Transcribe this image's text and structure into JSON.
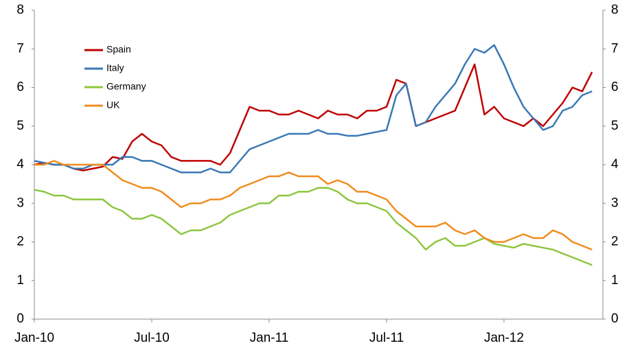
{
  "chart_data": {
    "type": "line",
    "categories": [
      "Jan-10",
      null,
      null,
      null,
      null,
      null,
      null,
      null,
      null,
      null,
      null,
      null,
      "Jul-10",
      null,
      null,
      null,
      null,
      null,
      null,
      null,
      null,
      null,
      null,
      null,
      "Jan-11",
      null,
      null,
      null,
      null,
      null,
      null,
      null,
      null,
      null,
      null,
      null,
      "Jul-11",
      null,
      null,
      null,
      null,
      null,
      null,
      null,
      null,
      null,
      null,
      null,
      "Jan-12",
      null,
      null,
      null,
      null,
      null,
      null,
      null,
      null,
      null
    ],
    "series": [
      {
        "name": "Spain",
        "color": "#c00000",
        "values": [
          4.0,
          4.05,
          4.0,
          4.0,
          3.9,
          3.85,
          3.9,
          3.95,
          4.2,
          4.15,
          4.6,
          4.8,
          4.6,
          4.5,
          4.2,
          4.1,
          4.1,
          4.1,
          4.1,
          4.0,
          4.3,
          4.9,
          5.5,
          5.4,
          5.4,
          5.3,
          5.3,
          5.4,
          5.3,
          5.2,
          5.4,
          5.3,
          5.3,
          5.2,
          5.4,
          5.4,
          5.5,
          6.2,
          6.1,
          5.0,
          5.1,
          5.2,
          5.3,
          5.4,
          6.0,
          6.6,
          5.3,
          5.5,
          5.2,
          5.1,
          5.0,
          5.2,
          5.0,
          5.3,
          5.6,
          6.0,
          5.9,
          6.4
        ]
      },
      {
        "name": "Italy",
        "color": "#3a78b5",
        "values": [
          4.1,
          4.05,
          4.0,
          4.0,
          3.9,
          3.9,
          4.0,
          4.0,
          4.0,
          4.2,
          4.2,
          4.1,
          4.1,
          4.0,
          3.9,
          3.8,
          3.8,
          3.8,
          3.9,
          3.8,
          3.8,
          4.1,
          4.4,
          4.5,
          4.6,
          4.7,
          4.8,
          4.8,
          4.8,
          4.9,
          4.8,
          4.8,
          4.75,
          4.75,
          4.8,
          4.85,
          4.9,
          5.8,
          6.1,
          5.0,
          5.1,
          5.5,
          5.8,
          6.1,
          6.6,
          7.0,
          6.9,
          7.1,
          6.6,
          6.0,
          5.5,
          5.2,
          4.9,
          5.0,
          5.4,
          5.5,
          5.8,
          5.9
        ]
      },
      {
        "name": "Germany",
        "color": "#8dc63f",
        "values": [
          3.35,
          3.3,
          3.2,
          3.2,
          3.1,
          3.1,
          3.1,
          3.1,
          2.9,
          2.8,
          2.6,
          2.6,
          2.7,
          2.6,
          2.4,
          2.2,
          2.3,
          2.3,
          2.4,
          2.5,
          2.7,
          2.8,
          2.9,
          3.0,
          3.0,
          3.2,
          3.2,
          3.3,
          3.3,
          3.4,
          3.4,
          3.3,
          3.1,
          3.0,
          3.0,
          2.9,
          2.8,
          2.5,
          2.3,
          2.1,
          1.8,
          2.0,
          2.1,
          1.9,
          1.9,
          2.0,
          2.1,
          1.95,
          1.9,
          1.85,
          1.95,
          1.9,
          1.85,
          1.8,
          1.7,
          1.6,
          1.5,
          1.4
        ]
      },
      {
        "name": "UK",
        "color": "#f08c1e",
        "values": [
          4.0,
          4.0,
          4.1,
          4.0,
          4.0,
          4.0,
          4.0,
          4.0,
          3.8,
          3.6,
          3.5,
          3.4,
          3.4,
          3.3,
          3.1,
          2.9,
          3.0,
          3.0,
          3.1,
          3.1,
          3.2,
          3.4,
          3.5,
          3.6,
          3.7,
          3.7,
          3.8,
          3.7,
          3.7,
          3.7,
          3.5,
          3.6,
          3.5,
          3.3,
          3.3,
          3.2,
          3.1,
          2.8,
          2.6,
          2.4,
          2.4,
          2.4,
          2.5,
          2.3,
          2.2,
          2.3,
          2.1,
          2.0,
          2.0,
          2.1,
          2.2,
          2.1,
          2.1,
          2.3,
          2.2,
          2.0,
          1.9,
          1.8
        ]
      }
    ],
    "ylim": [
      0,
      8
    ],
    "yticks": [
      0,
      1,
      2,
      3,
      4,
      5,
      6,
      7,
      8
    ],
    "y2lim": [
      0,
      8
    ],
    "y2ticks": [
      0,
      1,
      2,
      3,
      4,
      5,
      6,
      7,
      8
    ],
    "grid": false,
    "legend": "top-left"
  }
}
